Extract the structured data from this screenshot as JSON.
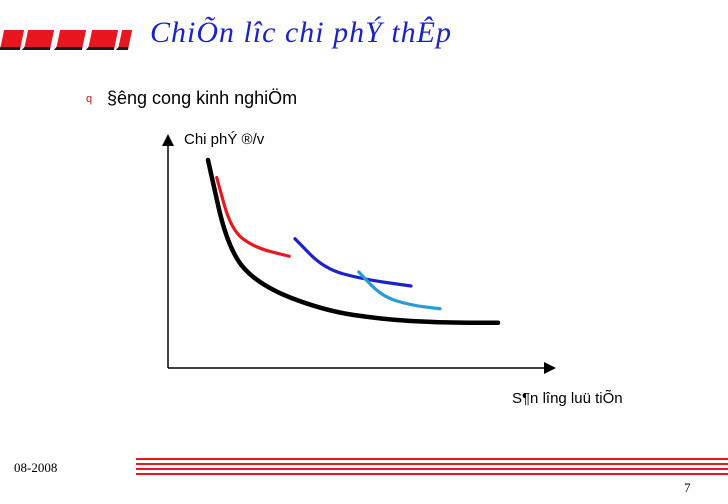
{
  "slide": {
    "title": "ChiÕn l­îc chi phÝ thÊp",
    "bullet_marker": "q",
    "bullet_text": "§­êng cong kinh nghiÖm",
    "date": "08-2008",
    "page_number": "7"
  },
  "chart_data": {
    "type": "line",
    "ylabel": "Chi phÝ ®/v",
    "xlabel": "S¶n l­îng luü tiÕn",
    "series": [
      {
        "color": "#000000",
        "points": [
          [
            0.0,
            1.0
          ],
          [
            0.7,
            0.48
          ],
          [
            1.8,
            0.28
          ],
          [
            4.0,
            0.14
          ],
          [
            6.0,
            0.09
          ],
          [
            8.0,
            0.07
          ],
          [
            10.0,
            0.07
          ]
        ]
      },
      {
        "color": "#e8161e",
        "points": [
          [
            0.3,
            0.9
          ],
          [
            0.8,
            0.6
          ],
          [
            1.6,
            0.5
          ],
          [
            2.8,
            0.45
          ]
        ]
      },
      {
        "color": "#1a22c8",
        "points": [
          [
            3.0,
            0.55
          ],
          [
            4.0,
            0.38
          ],
          [
            5.3,
            0.32
          ],
          [
            7.0,
            0.28
          ]
        ]
      },
      {
        "color": "#2a9bd4",
        "points": [
          [
            5.2,
            0.36
          ],
          [
            6.0,
            0.22
          ],
          [
            7.0,
            0.17
          ],
          [
            8.0,
            0.15
          ]
        ]
      }
    ]
  },
  "colors": {
    "accent_red": "#e8161e",
    "title_blue": "#1a22c8"
  }
}
